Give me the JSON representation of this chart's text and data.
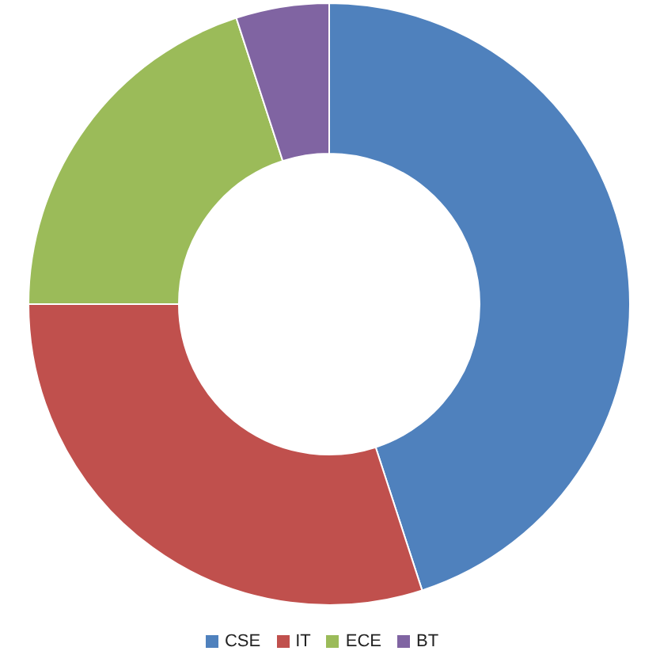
{
  "chart_data": {
    "type": "donut",
    "categories": [
      "CSE",
      "IT",
      "ECE",
      "BT"
    ],
    "values": [
      45,
      30,
      20,
      5
    ],
    "colors": [
      "#4f81bd",
      "#c0504d",
      "#9bbb59",
      "#8064a2"
    ],
    "legend": "bottom"
  }
}
